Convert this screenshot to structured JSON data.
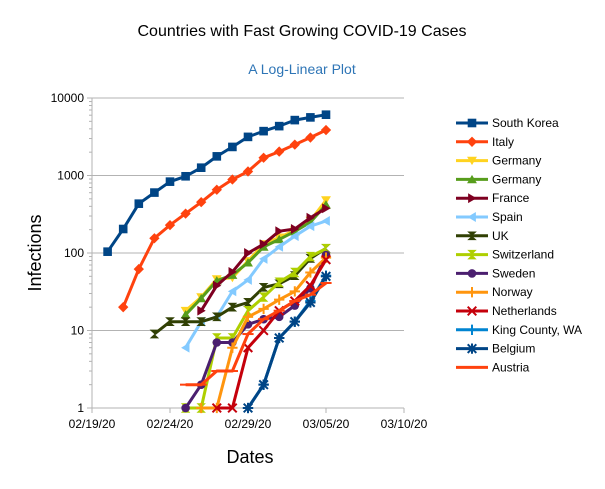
{
  "chart_data": {
    "type": "line",
    "title": "Countries with Fast Growing COVID-19 Cases",
    "subtitle": "A Log-Linear Plot",
    "xlabel": "Dates",
    "ylabel": "Infections",
    "y_scale": "log",
    "ylim": [
      1,
      10000
    ],
    "xlim": [
      "02/19/20",
      "03/10/20"
    ],
    "x_ticks": [
      "02/19/20",
      "02/24/20",
      "02/29/20",
      "03/05/20",
      "03/10/20"
    ],
    "y_ticks": [
      "1",
      "10",
      "100",
      "1000",
      "10000"
    ],
    "grid": "horizontal major gridlines",
    "legend_position": "right",
    "series": [
      {
        "name": "South Korea",
        "color": "#004586",
        "marker": "square",
        "x": [
          "02/20/20",
          "02/21/20",
          "02/22/20",
          "02/23/20",
          "02/24/20",
          "02/25/20",
          "02/26/20",
          "02/27/20",
          "02/28/20",
          "02/29/20",
          "03/01/20",
          "03/02/20",
          "03/03/20",
          "03/04/20",
          "03/05/20"
        ],
        "values": [
          104,
          204,
          433,
          602,
          833,
          977,
          1261,
          1766,
          2337,
          3150,
          3736,
          4335,
          5186,
          5621,
          6088
        ]
      },
      {
        "name": "Italy",
        "color": "#ff420e",
        "marker": "diamond",
        "x": [
          "02/21/20",
          "02/22/20",
          "02/23/20",
          "02/24/20",
          "02/25/20",
          "02/26/20",
          "02/27/20",
          "02/28/20",
          "02/29/20",
          "03/01/20",
          "03/02/20",
          "03/03/20",
          "03/04/20",
          "03/05/20"
        ],
        "values": [
          20,
          62,
          155,
          229,
          322,
          453,
          655,
          888,
          1128,
          1694,
          2036,
          2502,
          3089,
          3858
        ]
      },
      {
        "name": "Germany",
        "color": "#ffd320",
        "marker": "triangle-down",
        "x": [
          "02/25/20",
          "02/26/20",
          "02/27/20",
          "02/28/20",
          "02/29/20",
          "03/01/20",
          "03/02/20",
          "03/03/20",
          "03/04/20",
          "03/05/20"
        ],
        "values": [
          18,
          27,
          46,
          48,
          79,
          130,
          159,
          196,
          262,
          482
        ]
      },
      {
        "name": "Germany",
        "color": "#579d1c",
        "marker": "triangle-up",
        "x": [
          "02/25/20",
          "02/26/20",
          "02/27/20",
          "02/28/20",
          "02/29/20",
          "03/01/20",
          "03/02/20",
          "03/03/20",
          "03/04/20",
          "03/05/20"
        ],
        "values": [
          16,
          26,
          44,
          52,
          75,
          120,
          150,
          190,
          250,
          420
        ]
      },
      {
        "name": "France",
        "color": "#7e0021",
        "marker": "triangle-right",
        "x": [
          "02/26/20",
          "02/27/20",
          "02/28/20",
          "02/29/20",
          "03/01/20",
          "03/02/20",
          "03/03/20",
          "03/04/20",
          "03/05/20"
        ],
        "values": [
          18,
          38,
          57,
          100,
          130,
          191,
          204,
          285,
          377
        ]
      },
      {
        "name": "Spain",
        "color": "#83caff",
        "marker": "triangle-left",
        "x": [
          "02/25/20",
          "02/26/20",
          "02/27/20",
          "02/28/20",
          "02/29/20",
          "03/01/20",
          "03/02/20",
          "03/03/20",
          "03/04/20",
          "03/05/20"
        ],
        "values": [
          6,
          13,
          15,
          32,
          45,
          84,
          120,
          165,
          222,
          259
        ]
      },
      {
        "name": "UK",
        "color": "#314004",
        "marker": "bowtie",
        "x": [
          "02/23/20",
          "02/24/20",
          "02/25/20",
          "02/26/20",
          "02/27/20",
          "02/28/20",
          "02/29/20",
          "03/01/20",
          "03/02/20",
          "03/03/20",
          "03/04/20",
          "03/05/20"
        ],
        "values": [
          9,
          13,
          13,
          13,
          15,
          20,
          23,
          36,
          40,
          51,
          85,
          115
        ]
      },
      {
        "name": "Switzerland",
        "color": "#aecf00",
        "marker": "hourglass",
        "x": [
          "02/25/20",
          "02/26/20",
          "02/27/20",
          "02/28/20",
          "02/29/20",
          "03/01/20",
          "03/02/20",
          "03/03/20",
          "03/04/20",
          "03/05/20"
        ],
        "values": [
          1,
          1,
          8,
          8,
          18,
          27,
          42,
          56,
          90,
          114
        ]
      },
      {
        "name": "Sweden",
        "color": "#4b1f6f",
        "marker": "circle",
        "x": [
          "02/25/20",
          "02/26/20",
          "02/27/20",
          "02/28/20",
          "02/29/20",
          "03/01/20",
          "03/02/20",
          "03/03/20",
          "03/04/20",
          "03/05/20"
        ],
        "values": [
          1,
          2,
          7,
          7,
          12,
          14,
          15,
          21,
          35,
          94
        ]
      },
      {
        "name": "Norway",
        "color": "#ff950e",
        "marker": "plus",
        "x": [
          "02/26/20",
          "02/27/20",
          "02/28/20",
          "02/29/20",
          "03/01/20",
          "03/02/20",
          "03/03/20",
          "03/04/20",
          "03/05/20"
        ],
        "values": [
          1,
          1,
          6,
          15,
          19,
          25,
          32,
          56,
          87
        ]
      },
      {
        "name": "Netherlands",
        "color": "#c5000b",
        "marker": "cross",
        "x": [
          "02/27/20",
          "02/28/20",
          "02/29/20",
          "03/01/20",
          "03/02/20",
          "03/03/20",
          "03/04/20",
          "03/05/20"
        ],
        "values": [
          1,
          1,
          6,
          10,
          18,
          24,
          38,
          82
        ]
      },
      {
        "name": "King County, WA",
        "color": "#0084d1",
        "marker": "plus",
        "x": [
          "02/29/20",
          "03/01/20",
          "03/02/20",
          "03/03/20",
          "03/04/20",
          "03/05/20"
        ],
        "values": [
          1,
          2,
          8,
          13,
          24,
          51
        ]
      },
      {
        "name": "Belgium",
        "color": "#004586",
        "marker": "star",
        "x": [
          "02/29/20",
          "03/01/20",
          "03/02/20",
          "03/03/20",
          "03/04/20",
          "03/05/20"
        ],
        "values": [
          1,
          2,
          8,
          13,
          23,
          50
        ]
      },
      {
        "name": "Austria",
        "color": "#ff420e",
        "marker": "dash",
        "x": [
          "02/25/20",
          "02/26/20",
          "02/27/20",
          "02/28/20",
          "02/29/20",
          "03/01/20",
          "03/02/20",
          "03/03/20",
          "03/04/20",
          "03/05/20"
        ],
        "values": [
          2,
          2,
          3,
          3,
          9,
          14,
          18,
          24,
          29,
          41
        ]
      }
    ]
  }
}
